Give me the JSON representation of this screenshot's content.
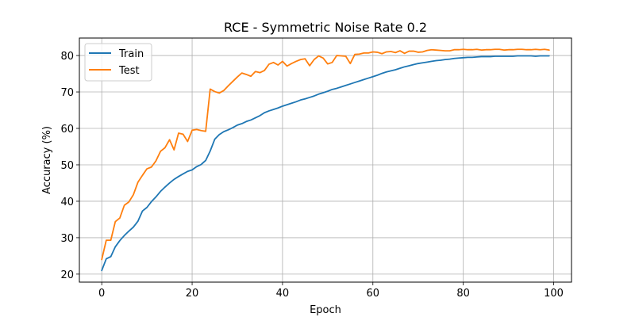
{
  "chart_data": {
    "type": "line",
    "title": "RCE - Symmetric Noise Rate 0.2",
    "xlabel": "Epoch",
    "ylabel": "Accuracy (%)",
    "xlim": [
      -4.95,
      103.95
    ],
    "ylim": [
      17.8,
      84.8
    ],
    "xticks": [
      0,
      20,
      40,
      60,
      80,
      100
    ],
    "yticks": [
      20,
      30,
      40,
      50,
      60,
      70,
      80
    ],
    "grid": true,
    "legend_position": "upper-left",
    "colors": {
      "Train": "#1f77b4",
      "Test": "#ff7f0e"
    },
    "x": [
      0,
      1,
      2,
      3,
      4,
      5,
      6,
      7,
      8,
      9,
      10,
      11,
      12,
      13,
      14,
      15,
      16,
      17,
      18,
      19,
      20,
      21,
      22,
      23,
      24,
      25,
      26,
      27,
      28,
      29,
      30,
      31,
      32,
      33,
      34,
      35,
      36,
      37,
      38,
      39,
      40,
      41,
      42,
      43,
      44,
      45,
      46,
      47,
      48,
      49,
      50,
      51,
      52,
      53,
      54,
      55,
      56,
      57,
      58,
      59,
      60,
      61,
      62,
      63,
      64,
      65,
      66,
      67,
      68,
      69,
      70,
      71,
      72,
      73,
      74,
      75,
      76,
      77,
      78,
      79,
      80,
      81,
      82,
      83,
      84,
      85,
      86,
      87,
      88,
      89,
      90,
      91,
      92,
      93,
      94,
      95,
      96,
      97,
      98,
      99
    ],
    "series": [
      {
        "name": "Train",
        "values": [
          21.0,
          24.2,
          24.8,
          27.5,
          29.2,
          30.6,
          31.8,
          32.9,
          34.5,
          37.3,
          38.3,
          39.9,
          41.2,
          42.7,
          43.9,
          45.0,
          46.0,
          46.8,
          47.5,
          48.2,
          48.6,
          49.5,
          50.1,
          51.2,
          53.8,
          57.0,
          58.3,
          59.1,
          59.6,
          60.2,
          60.9,
          61.3,
          61.9,
          62.3,
          62.9,
          63.5,
          64.3,
          64.8,
          65.2,
          65.6,
          66.1,
          66.5,
          66.9,
          67.3,
          67.8,
          68.1,
          68.5,
          68.9,
          69.4,
          69.8,
          70.2,
          70.7,
          71.0,
          71.4,
          71.8,
          72.2,
          72.6,
          73.0,
          73.4,
          73.8,
          74.2,
          74.6,
          75.1,
          75.5,
          75.8,
          76.1,
          76.5,
          76.9,
          77.2,
          77.5,
          77.8,
          78.0,
          78.2,
          78.4,
          78.6,
          78.7,
          78.9,
          79.0,
          79.2,
          79.3,
          79.4,
          79.5,
          79.5,
          79.6,
          79.7,
          79.7,
          79.7,
          79.8,
          79.8,
          79.8,
          79.8,
          79.8,
          79.9,
          79.9,
          79.9,
          79.9,
          79.8,
          79.9,
          79.9,
          79.9
        ]
      },
      {
        "name": "Test",
        "values": [
          24.0,
          29.3,
          29.3,
          34.4,
          35.4,
          38.9,
          39.8,
          41.8,
          45.2,
          47.1,
          48.9,
          49.4,
          51.1,
          53.7,
          54.7,
          56.9,
          54.1,
          58.7,
          58.4,
          56.4,
          59.5,
          59.7,
          59.4,
          59.2,
          70.8,
          70.1,
          69.7,
          70.4,
          71.7,
          72.9,
          74.1,
          75.2,
          74.8,
          74.3,
          75.6,
          75.3,
          75.9,
          77.6,
          78.1,
          77.4,
          78.4,
          77.1,
          77.8,
          78.4,
          78.9,
          79.1,
          77.2,
          78.9,
          79.9,
          79.3,
          77.7,
          78.1,
          80.0,
          79.9,
          79.8,
          77.8,
          80.3,
          80.4,
          80.7,
          80.7,
          81.0,
          80.9,
          80.5,
          81.0,
          81.1,
          80.8,
          81.3,
          80.6,
          81.2,
          81.2,
          80.9,
          81.0,
          81.4,
          81.6,
          81.5,
          81.4,
          81.3,
          81.3,
          81.6,
          81.6,
          81.7,
          81.6,
          81.6,
          81.7,
          81.5,
          81.6,
          81.6,
          81.7,
          81.7,
          81.5,
          81.6,
          81.6,
          81.7,
          81.7,
          81.6,
          81.6,
          81.7,
          81.6,
          81.7,
          81.5
        ]
      }
    ]
  }
}
